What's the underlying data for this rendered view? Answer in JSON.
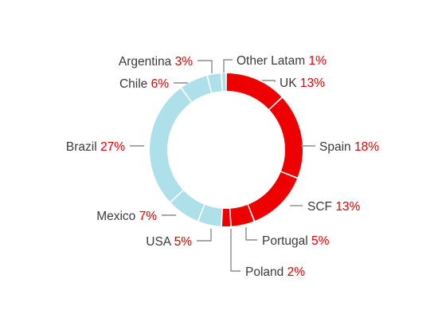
{
  "chart_data": {
    "type": "pie",
    "variant": "donut",
    "title": "",
    "unit": "%",
    "slices": [
      {
        "label": "UK",
        "value": 13,
        "display": "13%",
        "color": "#ee0000"
      },
      {
        "label": "Spain",
        "value": 18,
        "display": "18%",
        "color": "#ee0000"
      },
      {
        "label": "SCF",
        "value": 13,
        "display": "13%",
        "color": "#ee0000"
      },
      {
        "label": "Portugal",
        "value": 5,
        "display": "5%",
        "color": "#ee0000"
      },
      {
        "label": "Poland",
        "value": 2,
        "display": "2%",
        "color": "#ee0000"
      },
      {
        "label": "USA",
        "value": 5,
        "display": "5%",
        "color": "#aee0ea"
      },
      {
        "label": "Mexico",
        "value": 7,
        "display": "7%",
        "color": "#aee0ea"
      },
      {
        "label": "Brazil",
        "value": 27,
        "display": "27%",
        "color": "#aee0ea"
      },
      {
        "label": "Chile",
        "value": 6,
        "display": "6%",
        "color": "#aee0ea"
      },
      {
        "label": "Argentina",
        "value": 3,
        "display": "3%",
        "color": "#aee0ea"
      },
      {
        "label": "Other Latam",
        "value": 1,
        "display": "1%",
        "color": "#aee0ea"
      }
    ],
    "legend": "none",
    "label_name_color": "#3a3a3a",
    "label_value_color": "#e00000"
  }
}
